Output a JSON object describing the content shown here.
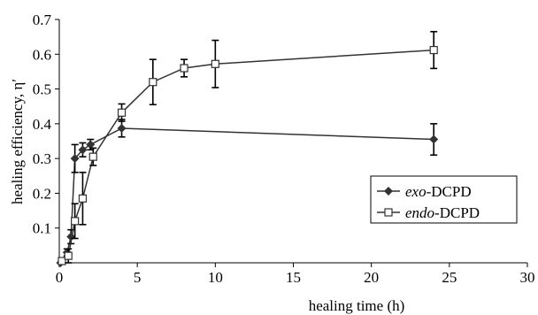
{
  "chart_data": {
    "type": "line",
    "title": "",
    "xlabel": "healing time (h)",
    "ylabel": "healing efficiency, η′",
    "xlim": [
      0,
      30
    ],
    "ylim": [
      0,
      0.7
    ],
    "xticks": [
      "0",
      "5",
      "10",
      "15",
      "20",
      "25",
      "30"
    ],
    "yticks": [
      "0.1",
      "0.2",
      "0.3",
      "0.4",
      "0.5",
      "0.6",
      "0.7"
    ],
    "xtick_values": [
      0,
      5,
      10,
      15,
      20,
      25,
      30
    ],
    "ytick_values": [
      0.1,
      0.2,
      0.3,
      0.4,
      0.5,
      0.6,
      0.7
    ],
    "grid": false,
    "legend_position": "right",
    "series": [
      {
        "name_italic": "exo",
        "name_rest": "-DCPD",
        "marker": "diamond",
        "color": "#333333",
        "x": [
          0.08,
          0.5,
          0.75,
          1.0,
          1.5,
          2.0,
          4.0,
          24.0
        ],
        "y": [
          0.0,
          0.03,
          0.075,
          0.3,
          0.325,
          0.34,
          0.387,
          0.355
        ],
        "err": [
          0.0,
          0.01,
          0.02,
          0.04,
          0.02,
          0.015,
          0.025,
          0.045
        ]
      },
      {
        "name_italic": "endo",
        "name_rest": "-DCPD",
        "marker": "square",
        "color": "#333333",
        "x": [
          0.17,
          0.58,
          1.0,
          1.5,
          2.17,
          4.0,
          6.0,
          8.0,
          10.0,
          24.0
        ],
        "y": [
          0.005,
          0.02,
          0.12,
          0.185,
          0.305,
          0.432,
          0.52,
          0.56,
          0.572,
          0.612
        ],
        "err": [
          0.005,
          0.02,
          0.05,
          0.075,
          0.025,
          0.025,
          0.065,
          0.025,
          0.068,
          0.053
        ]
      }
    ]
  }
}
